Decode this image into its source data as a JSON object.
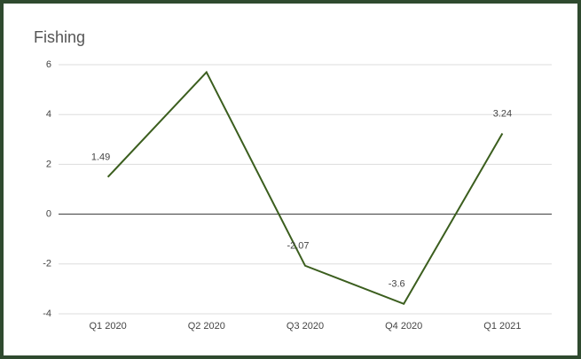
{
  "chart_data": {
    "type": "line",
    "title": "Fishing",
    "categories": [
      "Q1 2020",
      "Q2 2020",
      "Q3 2020",
      "Q4 2020",
      "Q1 2021"
    ],
    "series": [
      {
        "name": "Fishing",
        "color": "#3b5e1e",
        "values": [
          1.49,
          5.7,
          -2.07,
          -3.6,
          3.24
        ],
        "value_labels": [
          "1.49",
          null,
          "-2.07",
          "-3.6",
          "3.24"
        ]
      }
    ],
    "ylim": [
      -4,
      6
    ],
    "yticks": [
      -4,
      -2,
      0,
      2,
      4,
      6
    ],
    "grid": true
  }
}
